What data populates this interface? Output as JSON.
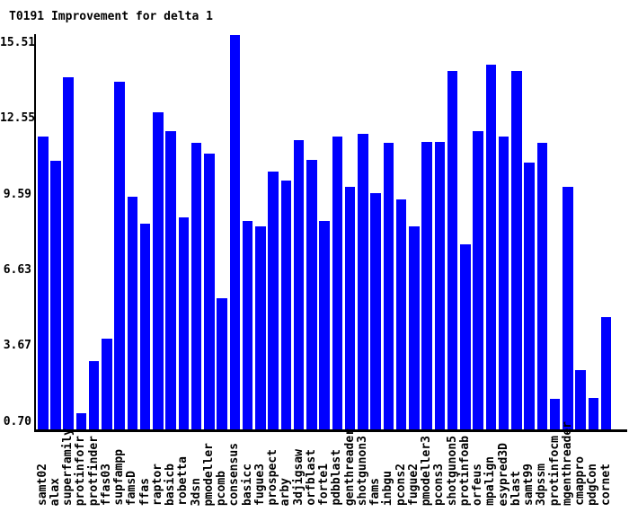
{
  "title": "T0191 Improvement for delta 1",
  "chart_data": {
    "type": "bar",
    "title": "T0191 Improvement for delta 1",
    "xlabel": "",
    "ylabel": "",
    "grid": false,
    "legend": false,
    "background": "#ffffff",
    "bar_color": "#0000ff",
    "axis_color": "#000000",
    "text_color": "#000000",
    "ytick_labels": [
      "15.51",
      "12.55",
      "9.59",
      "6.63",
      "3.67",
      "0.70"
    ],
    "ytick_values": [
      15.51,
      12.55,
      9.59,
      6.63,
      3.67,
      0.7
    ],
    "ylim": [
      0.38,
      15.85
    ],
    "categories": [
      "samt02",
      "alax",
      "superfamily",
      "protinfofr",
      "protfinder",
      "ffas03",
      "supfampp",
      "famsD",
      "ffas",
      "raptor",
      "basicb",
      "robetta",
      "3dsn",
      "pmodeller",
      "pcomb",
      "consensus",
      "basicc",
      "fugue3",
      "prospect",
      "arby",
      "3djigsaw",
      "orfblast",
      "forte1",
      "pdbblast",
      "genthreader",
      "shotgunon3",
      "fams",
      "inbgu",
      "pcons2",
      "fugue2",
      "pmodeller3",
      "pcons3",
      "shotgunon5",
      "protinfoab",
      "orfeus",
      "mpalign",
      "esypred3D",
      "blast",
      "samt99",
      "3dpssm",
      "protinfocm",
      "mgenthreader",
      "cmappro",
      "pdgCon",
      "cornet"
    ],
    "values": [
      11.85,
      10.9,
      14.15,
      1.05,
      3.1,
      3.95,
      14.0,
      9.5,
      8.45,
      12.8,
      12.05,
      8.7,
      11.6,
      11.2,
      5.55,
      15.8,
      8.55,
      8.35,
      10.5,
      10.15,
      11.7,
      10.95,
      8.55,
      11.85,
      9.9,
      11.95,
      9.65,
      11.6,
      9.4,
      8.35,
      11.65,
      11.65,
      14.4,
      7.65,
      12.05,
      14.65,
      11.85,
      14.4,
      10.85,
      11.6,
      1.6,
      9.9,
      2.75,
      1.65,
      4.8
    ]
  }
}
